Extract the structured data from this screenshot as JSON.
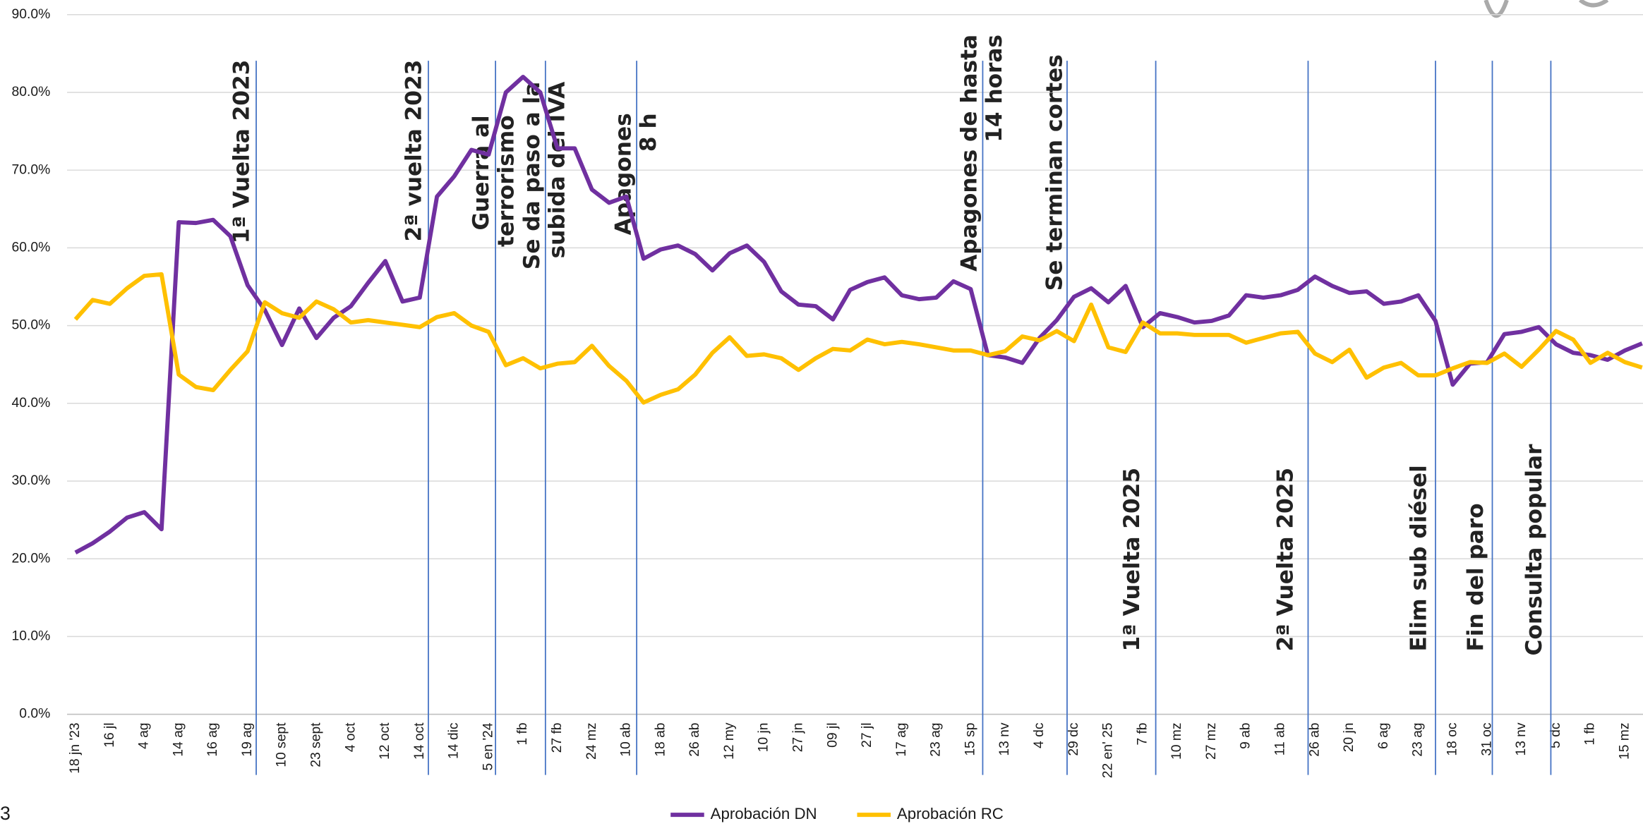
{
  "chart_data": {
    "type": "line",
    "categories": [
      "18 jn '23",
      null,
      "16 jl",
      null,
      "4 ag",
      null,
      "14 ag",
      null,
      "16 ag",
      null,
      "19 ag",
      null,
      "10 sept",
      null,
      "23 sept",
      null,
      "4 oct",
      null,
      "12 oct",
      null,
      "14 oct",
      null,
      "14 dic",
      null,
      "5 en '24",
      null,
      "1 fb",
      null,
      "27 fb",
      null,
      "24 mz",
      null,
      "10 ab",
      null,
      "18 ab",
      null,
      "26 ab",
      null,
      "12 my",
      null,
      "10 jn",
      null,
      "27 jn",
      null,
      "09 jl",
      null,
      "27 jl",
      null,
      "17 ag",
      null,
      "23 ag",
      null,
      "15 sp",
      null,
      "13 nv",
      null,
      "4 dc",
      null,
      "29 dc",
      null,
      "22 en' 25",
      null,
      "7 fb",
      null,
      "10 mz",
      null,
      "27 mz",
      null,
      "9 ab",
      null,
      "11 ab",
      null,
      "26 ab",
      null,
      "20 jn",
      null,
      "6 ag",
      null,
      "23 ag",
      null,
      "18 oc",
      null,
      "31 oc",
      null,
      "13 nv",
      null,
      "5 dc",
      null,
      "1 fb",
      null,
      "15 mz",
      null
    ],
    "series": [
      {
        "name": "Aprobación DN",
        "color": "#7030a0",
        "values": [
          20.8,
          22,
          23.5,
          25.3,
          26,
          23.8,
          63.3,
          63.2,
          63.6,
          61.5,
          55.2,
          52,
          47.5,
          52.2,
          48.4,
          51.0,
          52.5,
          55.5,
          58.3,
          53.1,
          53.6,
          66.6,
          69.2,
          72.6,
          72.0,
          80.0,
          82.0,
          80.0,
          72.8,
          72.8,
          67.5,
          65.8,
          66.6,
          58.6,
          59.8,
          60.3,
          59.2,
          57.1,
          59.3,
          60.3,
          58.2,
          54.4,
          52.7,
          52.5,
          50.8,
          54.6,
          55.6,
          56.2,
          53.9,
          53.4,
          53.6,
          55.7,
          54.7,
          46.2,
          45.9,
          45.2,
          48.4,
          50.7,
          53.7,
          54.8,
          53.0,
          55.1,
          49.8,
          51.6,
          51.1,
          50.4,
          50.6,
          51.3,
          53.9,
          53.6,
          53.9,
          54.6,
          56.3,
          55.1,
          54.2,
          54.4,
          52.8,
          53.1,
          53.9,
          50.6,
          42.4,
          45.1,
          45.3,
          48.9,
          49.2,
          49.8,
          47.6,
          46.5,
          46.2,
          45.6,
          46.8,
          47.7
        ]
      },
      {
        "name": "Aprobación RC",
        "color": "#ffc000",
        "values": [
          50.8,
          53.3,
          52.8,
          54.8,
          56.4,
          56.6,
          43.7,
          42.1,
          41.7,
          44.3,
          46.7,
          53.0,
          51.6,
          51.0,
          53.1,
          52.1,
          50.4,
          50.7,
          50.4,
          50.1,
          49.8,
          51.1,
          51.6,
          50.0,
          49.2,
          44.9,
          45.8,
          44.5,
          45.1,
          45.3,
          47.4,
          44.8,
          42.9,
          40.1,
          41.1,
          41.8,
          43.7,
          46.5,
          48.5,
          46.1,
          46.3,
          45.8,
          44.3,
          45.8,
          47.0,
          46.8,
          48.2,
          47.6,
          47.9,
          47.6,
          47.2,
          46.8,
          46.8,
          46.2,
          46.7,
          48.6,
          48.1,
          49.3,
          48.0,
          52.7,
          47.2,
          46.6,
          50.4,
          49.0,
          49.0,
          48.8,
          48.8,
          48.8,
          47.8,
          48.4,
          49.0,
          49.2,
          46.4,
          45.3,
          46.9,
          43.3,
          44.6,
          45.2,
          43.6,
          43.6,
          44.5,
          45.3,
          45.2,
          46.4,
          44.7,
          46.9,
          49.3,
          48.2,
          45.2,
          46.5,
          45.3,
          44.6
        ]
      }
    ],
    "ylim": [
      0,
      90
    ],
    "yticks": [
      {
        "value": 0,
        "label": "0.0%"
      },
      {
        "value": 10,
        "label": "10.0%"
      },
      {
        "value": 20,
        "label": "20.0%"
      },
      {
        "value": 30,
        "label": "30.0%"
      },
      {
        "value": 40,
        "label": "40.0%"
      },
      {
        "value": 50,
        "label": "50.0%"
      },
      {
        "value": 60,
        "label": "60.0%"
      },
      {
        "value": 70,
        "label": "70.0%"
      },
      {
        "value": 80,
        "label": "80.0%"
      },
      {
        "value": 90,
        "label": "90.0%"
      }
    ],
    "grid": true,
    "legend": "bottom",
    "event_line_color": "#4472c4",
    "annotations": [
      {
        "lines": [
          "1ª Vuelta 2023"
        ],
        "x": 10.5
      },
      {
        "lines": [
          "2ª vuelta 2023"
        ],
        "x": 20.5
      },
      {
        "lines": [
          "Guerra al",
          "terrorismo"
        ],
        "x": 24.4
      },
      {
        "lines": [
          "Se da paso a la",
          "subida del IVA"
        ],
        "x": 27.3
      },
      {
        "lines": [
          "Apagones",
          "8 h"
        ],
        "x": 32.6
      },
      {
        "lines": [
          "Apagones de hasta",
          "14 horas"
        ],
        "x": 52.7
      },
      {
        "lines": [
          "Se terminan cortes"
        ],
        "x": 57.6
      },
      {
        "lines": [
          "1ª Vuelta 2025"
        ],
        "x": 62.75
      },
      {
        "lines": [
          "2ª Vuelta 2025"
        ],
        "x": 71.6
      },
      {
        "lines": [
          "Elim sub diésel"
        ],
        "x": 79.0
      },
      {
        "lines": [
          "Fin del paro"
        ],
        "x": 82.3
      },
      {
        "lines": [
          "Consulta popular"
        ],
        "x": 85.7
      }
    ]
  },
  "page_number": "3"
}
